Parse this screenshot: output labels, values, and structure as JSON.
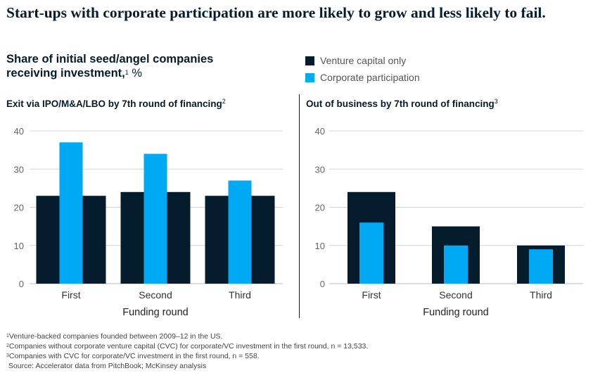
{
  "title": "Start-ups with corporate participation are more likely to grow and less likely to fail.",
  "subtitle": {
    "text": "Share of initial seed/angel companies receiving investment,",
    "note": "1",
    "unit": " %"
  },
  "legend": [
    {
      "label": "Venture capital only",
      "color": "#051c2c"
    },
    {
      "label": "Corporate participation",
      "color": "#00a9f4"
    }
  ],
  "panels": [
    {
      "title": "Exit via IPO/M&A/LBO by 7th round of financing",
      "note": "2"
    },
    {
      "title": "Out of business by 7th round of financing",
      "note": "3"
    }
  ],
  "footnotes": [
    {
      "mark": "1",
      "text": "Venture-backed companies founded between 2009–12 in the US."
    },
    {
      "mark": "2",
      "text": "Companies without corporate venture capital (CVC) for corporate/VC investment in the first round, n = 13,533."
    },
    {
      "mark": "3",
      "text": "Companies with CVC for corporate/VC investment in the first round, n = 558."
    },
    {
      "mark": "",
      "text": "Source: Accelerator data from PitchBook; McKinsey analysis"
    }
  ],
  "chart_data": [
    {
      "type": "bar",
      "title": "Exit via IPO/M&A/LBO by 7th round of financing",
      "xlabel": "Funding round",
      "ylabel": "",
      "categories": [
        "First",
        "Second",
        "Third"
      ],
      "ylim": [
        0,
        40
      ],
      "yticks": [
        0,
        10,
        20,
        30,
        40
      ],
      "grid": true,
      "series": [
        {
          "name": "Venture capital only",
          "values": [
            23,
            24,
            23
          ],
          "color": "#051c2c"
        },
        {
          "name": "Corporate participation",
          "values": [
            37,
            34,
            27
          ],
          "color": "#00a9f4"
        }
      ]
    },
    {
      "type": "bar",
      "title": "Out of business by 7th round of financing",
      "xlabel": "Funding round",
      "ylabel": "",
      "categories": [
        "First",
        "Second",
        "Third"
      ],
      "ylim": [
        0,
        40
      ],
      "yticks": [
        0,
        10,
        20,
        30,
        40
      ],
      "grid": true,
      "series": [
        {
          "name": "Venture capital only",
          "values": [
            24,
            15,
            10
          ],
          "color": "#051c2c"
        },
        {
          "name": "Corporate participation",
          "values": [
            16,
            10,
            9
          ],
          "color": "#00a9f4"
        }
      ]
    }
  ]
}
